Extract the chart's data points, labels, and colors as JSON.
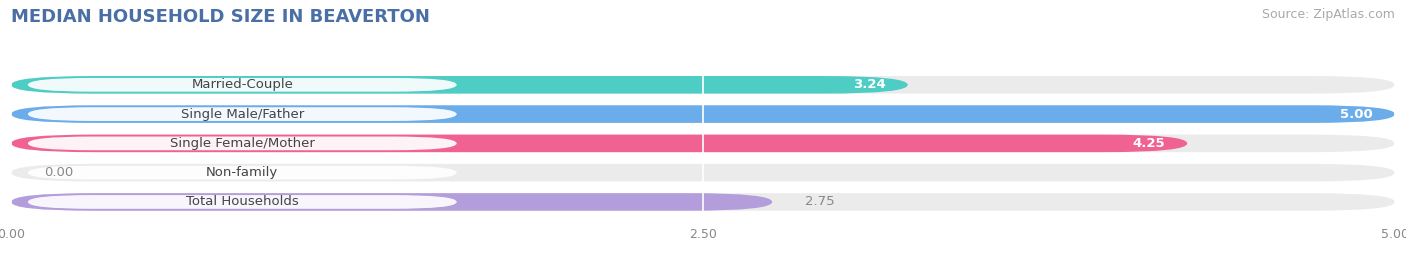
{
  "title": "MEDIAN HOUSEHOLD SIZE IN BEAVERTON",
  "source": "Source: ZipAtlas.com",
  "categories": [
    "Married-Couple",
    "Single Male/Father",
    "Single Female/Mother",
    "Non-family",
    "Total Households"
  ],
  "values": [
    3.24,
    5.0,
    4.25,
    0.0,
    2.75
  ],
  "bar_colors": [
    "#4ecdc4",
    "#6aadea",
    "#f06292",
    "#f5c89a",
    "#b39ddb"
  ],
  "value_in_bar": [
    true,
    true,
    true,
    false,
    false
  ],
  "xlim": [
    0,
    5.0
  ],
  "xticks": [
    0.0,
    2.5,
    5.0
  ],
  "xtick_labels": [
    "0.00",
    "2.50",
    "5.00"
  ],
  "background_color": "#ffffff",
  "bar_background": "#ebebeb",
  "bar_height": 0.6,
  "title_fontsize": 13,
  "source_fontsize": 9,
  "label_fontsize": 9.5,
  "value_fontsize": 9.5
}
